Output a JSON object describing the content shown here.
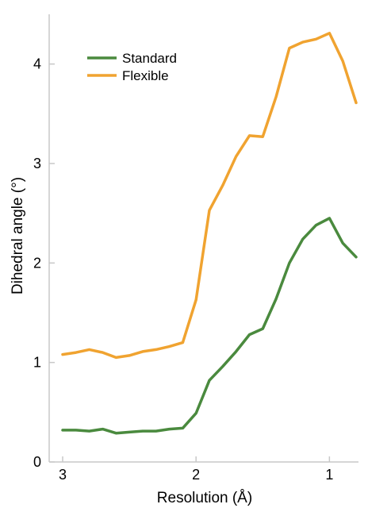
{
  "chart_data": {
    "type": "line",
    "title": "",
    "xlabel": "Resolution (Å)",
    "ylabel": "Dihedral angle (°)",
    "xlim": [
      3.0,
      0.8
    ],
    "ylim": [
      0,
      4.5
    ],
    "x_reversed": true,
    "grid": false,
    "legend_position": "top-left",
    "x_ticks": [
      3,
      2,
      1
    ],
    "x_tick_labels": [
      "3",
      "2",
      "1"
    ],
    "y_ticks": [
      0,
      1,
      2,
      3,
      4
    ],
    "y_tick_labels": [
      "0",
      "1",
      "2",
      "3",
      "4"
    ],
    "series": [
      {
        "name": "Standard",
        "color": "#4a8a3e",
        "x": [
          3.0,
          2.9,
          2.8,
          2.7,
          2.6,
          2.5,
          2.4,
          2.3,
          2.2,
          2.1,
          2.0,
          1.9,
          1.8,
          1.7,
          1.6,
          1.5,
          1.4,
          1.3,
          1.2,
          1.1,
          1.0,
          0.9,
          0.8
        ],
        "y": [
          0.32,
          0.32,
          0.31,
          0.33,
          0.29,
          0.3,
          0.31,
          0.31,
          0.33,
          0.34,
          0.49,
          0.82,
          0.96,
          1.11,
          1.28,
          1.34,
          1.64,
          2.0,
          2.24,
          2.38,
          2.45,
          2.2,
          2.06
        ]
      },
      {
        "name": "Flexible",
        "color": "#f0a330",
        "x": [
          3.0,
          2.9,
          2.8,
          2.7,
          2.6,
          2.5,
          2.4,
          2.3,
          2.2,
          2.1,
          2.0,
          1.9,
          1.8,
          1.7,
          1.6,
          1.5,
          1.4,
          1.3,
          1.2,
          1.1,
          1.0,
          0.9,
          0.8
        ],
        "y": [
          1.08,
          1.1,
          1.13,
          1.1,
          1.05,
          1.07,
          1.11,
          1.13,
          1.16,
          1.2,
          1.63,
          2.53,
          2.78,
          3.07,
          3.28,
          3.27,
          3.67,
          4.16,
          4.22,
          4.25,
          4.31,
          4.03,
          3.61
        ]
      }
    ]
  }
}
